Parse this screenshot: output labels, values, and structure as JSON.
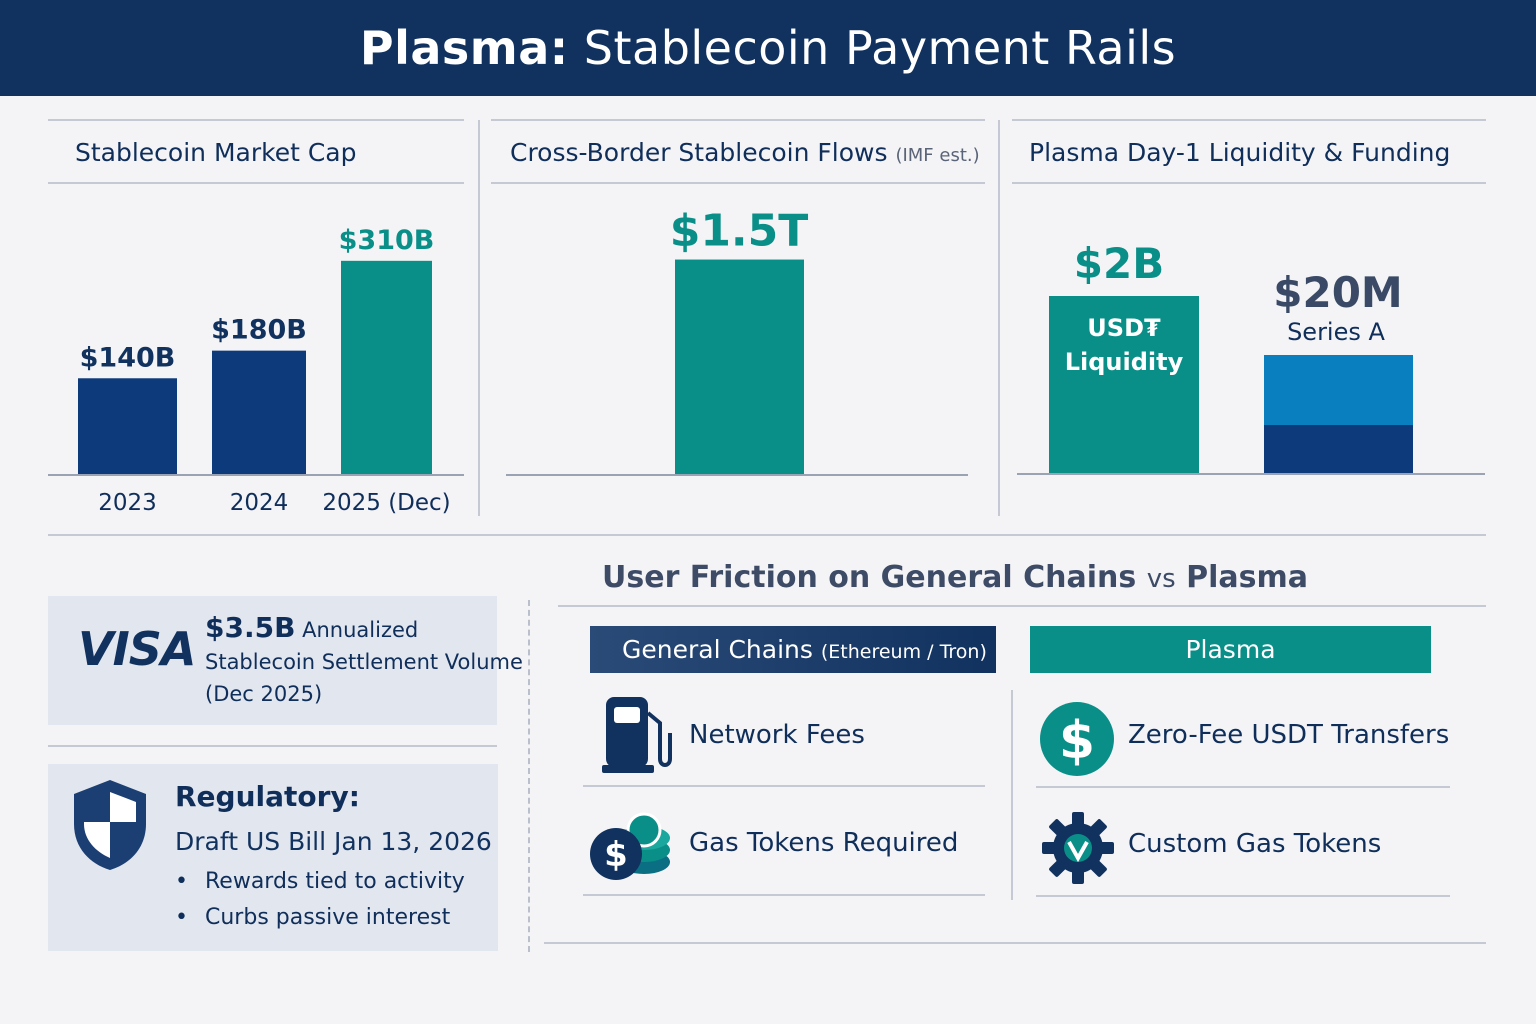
{
  "header": {
    "title_strong": "Plasma:",
    "title_rest": "Stablecoin Payment Rails"
  },
  "colors": {
    "navy": "#11325f",
    "bar_navy": "#0d3a7a",
    "teal": "#0a8f88",
    "blue": "#0a7fc0",
    "header_bg": "#11325f"
  },
  "chart_data": [
    {
      "type": "bar",
      "title": "Stablecoin Market Cap",
      "categories": [
        "2023",
        "2024",
        "2025 (Dec)"
      ],
      "values": [
        140,
        180,
        310
      ],
      "value_labels": [
        "$140B",
        "$180B",
        "$310B"
      ],
      "unit": "B",
      "ylim": [
        0,
        330
      ],
      "xlabel": "",
      "ylabel": ""
    },
    {
      "type": "bar",
      "title": "Cross-Border Stablecoin Flows",
      "title_note": "(IMF est.)",
      "categories": [
        ""
      ],
      "values": [
        1.5
      ],
      "value_labels": [
        "$1.5T"
      ],
      "unit": "T",
      "ylim": [
        0,
        1.65
      ]
    },
    {
      "type": "bar",
      "title": "Plasma Day-1 Liquidity & Funding",
      "categories": [
        "USD₮ Liquidity",
        "Series A"
      ],
      "values": [
        2000,
        20
      ],
      "value_labels": [
        "$2B",
        "$20M"
      ],
      "unit": "M"
    }
  ],
  "funding_panel": {
    "bar1_label_line1": "USD₮",
    "bar1_label_line2": "Liquidity",
    "bar2_sublabel": "Series A"
  },
  "visa_card": {
    "logo": "VISA",
    "amount": "$3.5B",
    "line1_rest": "Annualized",
    "line2": "Stablecoin Settlement Volume",
    "line3": "(Dec 2025)"
  },
  "regulatory_card": {
    "title": "Regulatory:",
    "subtitle": "Draft US Bill Jan 13, 2026",
    "bullets": [
      "Rewards tied to activity",
      "Curbs passive interest"
    ]
  },
  "friction": {
    "title_a": "User Friction on General Chains",
    "title_vs": "vs",
    "title_b": "Plasma",
    "general_header": "General Chains",
    "general_header_note": "(Ethereum / Tron)",
    "plasma_header": "Plasma",
    "general_rows": [
      {
        "icon": "fuel-pump-icon",
        "label": "Network Fees"
      },
      {
        "icon": "coins-stack-icon",
        "label": "Gas Tokens Required"
      }
    ],
    "plasma_rows": [
      {
        "icon": "dollar-circle-icon",
        "label": "Zero-Fee USDT Transfers"
      },
      {
        "icon": "gear-icon",
        "label": "Custom Gas Tokens"
      }
    ]
  }
}
